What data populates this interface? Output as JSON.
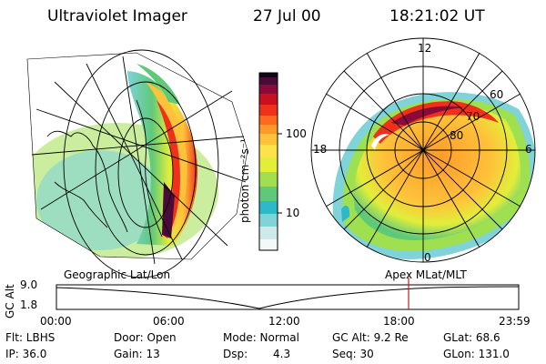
{
  "header": {
    "instrument": "Ultraviolet Imager",
    "date": "27 Jul 00",
    "time": "18:21:02 UT"
  },
  "colorbar": {
    "unit_label": "photon cm⁻²s⁻¹",
    "ticks": [
      "100",
      "10"
    ],
    "colors": [
      "#ffffff",
      "#cfe8ea",
      "#7fd3d9",
      "#2fb8c9",
      "#5fc97a",
      "#9ee04f",
      "#e2ee3a",
      "#ffe14a",
      "#ffc23a",
      "#ff9a2a",
      "#ff6a1f",
      "#f0301a",
      "#c8101f",
      "#8a0a3a",
      "#4a0a3a",
      "#120612"
    ]
  },
  "left_panel": {
    "caption": "Geographic Lat/Lon"
  },
  "right_panel": {
    "caption": "Apex MLat/MLT",
    "mlt_labels": {
      "top": "12",
      "left": "18",
      "right": "6",
      "bottom": "0"
    },
    "lat_labels": [
      "60",
      "70",
      "80"
    ]
  },
  "timeline": {
    "axis_title": "GC Alt",
    "y_ticks": [
      "9.0",
      "1.8"
    ],
    "x_ticks": [
      "00:00",
      "06:00",
      "12:00",
      "18:00",
      "23:59"
    ],
    "marker_time": "18:21",
    "marker_color": "#c81e1e"
  },
  "info": {
    "flt": "Flt: LBHS",
    "ip": "IP: 36.0",
    "door": "Door: Open",
    "gain": "Gain: 13",
    "mode": "Mode: Normal",
    "dsp_label": "Dsp:",
    "dsp_value": "4.3",
    "gc_alt": "GC Alt: 9.2 Re",
    "seq": "Seq: 30",
    "glat": "GLat:  68.6",
    "glon": "GLon: 131.0"
  }
}
